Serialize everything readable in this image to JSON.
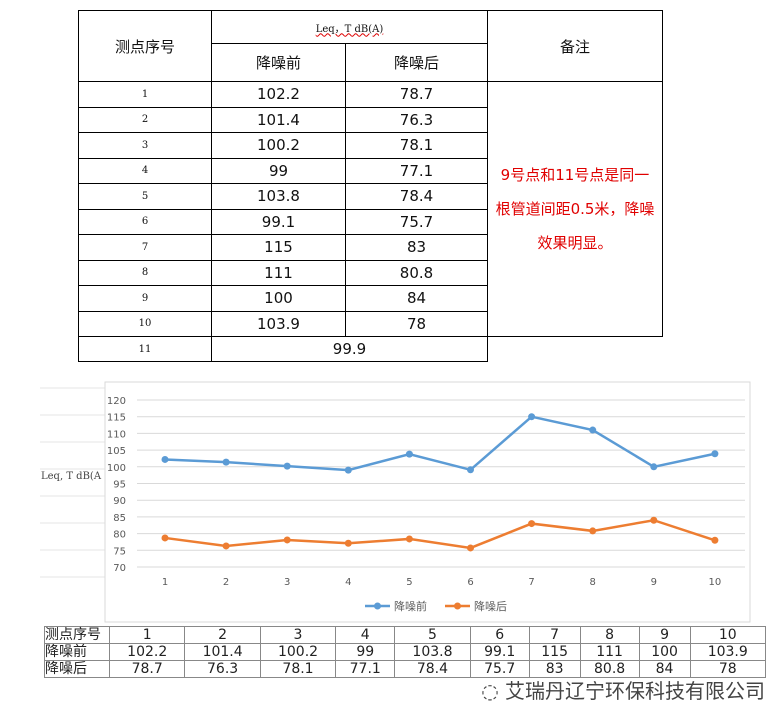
{
  "table": {
    "header_id": "测点序号",
    "header_leq": "Leq，T  dB(A)",
    "header_before": "降噪前",
    "header_after": "降噪后",
    "header_note": "备注",
    "rows": [
      [
        "1",
        "102.2",
        "78.7"
      ],
      [
        "2",
        "101.4",
        "76.3"
      ],
      [
        "3",
        "100.2",
        "78.1"
      ],
      [
        "4",
        "99",
        "77.1"
      ],
      [
        "5",
        "103.8",
        "78.4"
      ],
      [
        "6",
        "99.1",
        "75.7"
      ],
      [
        "7",
        "115",
        "83"
      ],
      [
        "8",
        "111",
        "80.8"
      ],
      [
        "9",
        "100",
        "84"
      ],
      [
        "10",
        "103.9",
        "78"
      ]
    ],
    "row11_id": "11",
    "row11_value": "99.9",
    "note": "9号点和11号点是同一根管道间距0.5米，降噪效果明显。"
  },
  "chart_data": {
    "type": "line",
    "title": "",
    "xlabel": "",
    "ylabel": "Leq, T  dB(A",
    "categories": [
      "1",
      "2",
      "3",
      "4",
      "5",
      "6",
      "7",
      "8",
      "9",
      "10"
    ],
    "ylim": [
      70,
      120
    ],
    "yticks": [
      70,
      75,
      80,
      85,
      90,
      95,
      100,
      105,
      110,
      115,
      120
    ],
    "grid": true,
    "legend": "bottom",
    "series": [
      {
        "name": "降噪前",
        "color": "#5b9bd5",
        "values": [
          102.2,
          101.4,
          100.2,
          99,
          103.8,
          99.1,
          115,
          111,
          100,
          103.9
        ]
      },
      {
        "name": "降噪后",
        "color": "#ed7d31",
        "values": [
          78.7,
          76.3,
          78.1,
          77.1,
          78.4,
          75.7,
          83,
          80.8,
          84,
          78
        ]
      }
    ]
  },
  "data_table": {
    "row_labels": [
      "测点序号",
      "降噪前",
      "降噪后"
    ]
  },
  "watermark": "艾瑞丹辽宁环保科技有限公司"
}
